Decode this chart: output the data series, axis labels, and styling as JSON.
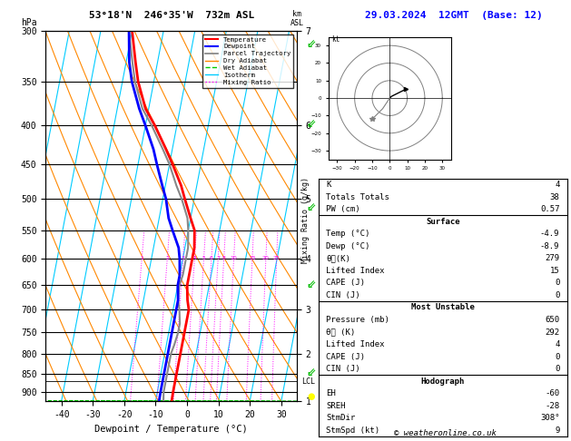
{
  "title_left": "53°18'N  246°35'W  732m ASL",
  "title_right": "29.03.2024  12GMT  (Base: 12)",
  "xlabel": "Dewpoint / Temperature (°C)",
  "ylabel_left": "hPa",
  "pressure_levels": [
    300,
    350,
    400,
    450,
    500,
    550,
    600,
    650,
    700,
    750,
    800,
    850,
    900
  ],
  "pressure_min": 300,
  "pressure_max": 925,
  "temp_min": -45,
  "temp_max": 35,
  "isotherm_color": "#00ccff",
  "dry_adiabat_color": "#ff8800",
  "wet_adiabat_color": "#00cc00",
  "mixing_ratio_color": "#ff00ff",
  "temp_color": "#ff0000",
  "dewpoint_color": "#0000ff",
  "parcel_color": "#888888",
  "skew_factor": 20,
  "temperature_profile": {
    "pressure": [
      300,
      330,
      350,
      380,
      400,
      430,
      450,
      480,
      500,
      530,
      550,
      580,
      600,
      630,
      650,
      680,
      700,
      730,
      750,
      780,
      800,
      830,
      850,
      880,
      900,
      925
    ],
    "temp": [
      -40,
      -37,
      -35,
      -31,
      -27,
      -22,
      -19,
      -15,
      -13,
      -10,
      -8,
      -7,
      -7,
      -7,
      -7,
      -6,
      -5,
      -5,
      -5,
      -5,
      -5,
      -5,
      -5,
      -5,
      -5,
      -4.9
    ]
  },
  "dewpoint_profile": {
    "pressure": [
      300,
      330,
      350,
      380,
      400,
      430,
      450,
      480,
      500,
      530,
      550,
      580,
      600,
      630,
      650,
      680,
      700,
      730,
      750,
      780,
      800,
      830,
      850,
      880,
      900,
      925
    ],
    "dewp": [
      -41,
      -39,
      -37,
      -33,
      -30,
      -26,
      -24,
      -21,
      -19,
      -17,
      -15,
      -12,
      -11,
      -10,
      -10,
      -9,
      -9,
      -9,
      -9,
      -9,
      -9,
      -9,
      -9,
      -9,
      -9,
      -8.9
    ]
  },
  "parcel_profile": {
    "pressure": [
      300,
      330,
      350,
      380,
      400,
      430,
      450,
      480,
      500,
      530,
      550,
      580,
      600,
      630,
      650,
      680,
      700,
      730,
      750,
      780,
      800,
      830,
      850,
      880,
      900,
      925
    ],
    "temp": [
      -41,
      -38,
      -36,
      -32,
      -28,
      -23,
      -20,
      -16.5,
      -14,
      -11,
      -10,
      -9,
      -9,
      -9,
      -9.5,
      -9,
      -8,
      -7,
      -7,
      -7.5,
      -8,
      -8,
      -8,
      -8,
      -8,
      -7.5
    ]
  },
  "lcl_pressure": 870,
  "mixing_ratios": [
    1,
    2,
    3,
    4,
    5,
    6,
    7,
    8,
    10,
    15,
    20,
    25
  ],
  "km_ticks": {
    "pressures": [
      925,
      800,
      700,
      600,
      500,
      400,
      300
    ],
    "km_values": [
      1,
      2,
      3,
      4,
      5,
      6,
      7
    ]
  },
  "stats": {
    "K": 4,
    "Totals_Totals": 38,
    "PW_cm": 0.57,
    "Surface_Temp": -4.9,
    "Surface_Dewp": -8.9,
    "Surface_theta_e": 279,
    "Lifted_Index": 15,
    "CAPE": 0,
    "CIN": 0,
    "MU_Pressure": 650,
    "MU_theta_e": 292,
    "MU_Lifted_Index": 4,
    "MU_CAPE": 0,
    "MU_CIN": 0,
    "EH": -60,
    "SREH": -28,
    "StmDir": "308°",
    "StmSpd_kt": 9
  },
  "hodograph_radii": [
    10,
    20,
    30
  ],
  "copyright": "© weatheronline.co.uk",
  "legend_labels": [
    "Temperature",
    "Dewpoint",
    "Parcel Trajectory",
    "Dry Adiabat",
    "Wet Adiabat",
    "Isotherm",
    "Mixing Ratio"
  ]
}
